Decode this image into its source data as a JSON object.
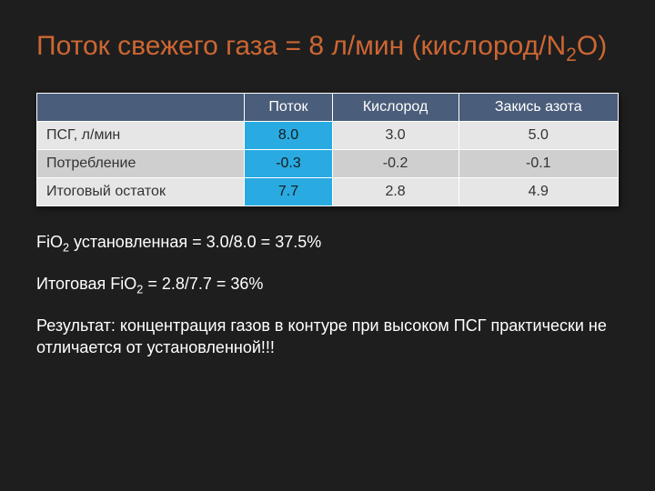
{
  "title_prefix": "Поток свежего газа = ",
  "title_value": "8 л/мин",
  "title_suffix_before_sub": " (кислород/N",
  "title_sub": "2",
  "title_suffix_after_sub": "O)",
  "table": {
    "header": [
      "",
      "Поток",
      "Кислород",
      "Закись азота"
    ],
    "rows": [
      {
        "label": "ПСГ, л/мин",
        "cells": [
          "8.0",
          "3.0",
          "5.0"
        ],
        "highlight": 0
      },
      {
        "label": "Потребление",
        "cells": [
          "-0.3",
          "-0.2",
          "-0.1"
        ],
        "highlight": 0
      },
      {
        "label": "Итоговый остаток",
        "cells": [
          "7.7",
          "2.8",
          "4.9"
        ],
        "highlight": 0
      }
    ],
    "colors": {
      "header_bg": "#4a5d7a",
      "header_fg": "#ffffff",
      "row_alt1_bg": "#e6e6e6",
      "row_alt2_bg": "#cfcfcf",
      "cell_fg": "#333333",
      "highlight_bg": "#29abe2",
      "border": "#ffffff"
    }
  },
  "line1_before": "FiO",
  "line1_sub": "2",
  "line1_after": " установленная = 3.0/8.0 = 37.5%",
  "line2_before": "Итоговая FiO",
  "line2_sub": "2",
  "line2_after": " = 2.8/7.7 = 36%",
  "line3": "Результат: концентрация газов в контуре при высоком ПСГ практически не отличается от установленной!!!",
  "accent_color": "#cc6633",
  "background_color": "#1e1e1e"
}
